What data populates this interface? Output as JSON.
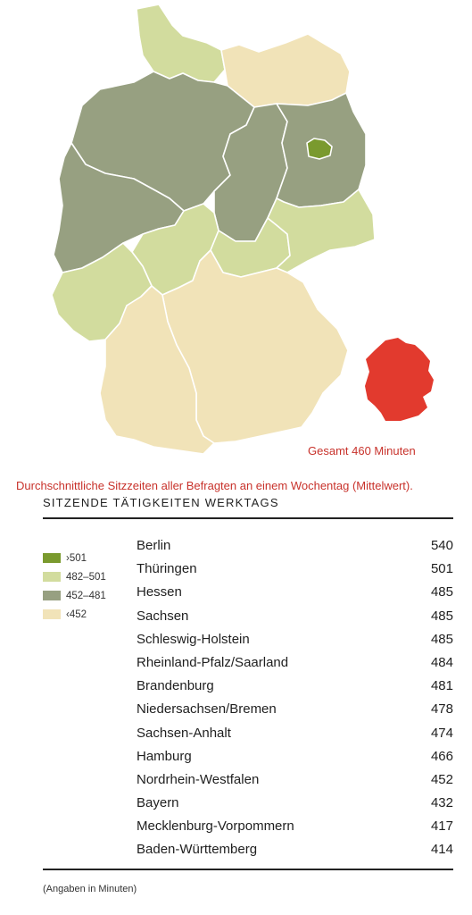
{
  "chart_data": {
    "type": "choropleth-map-with-table",
    "unit": "Minuten",
    "total": {
      "label": "Gesamt 460 Minuten",
      "value": 460
    },
    "caption": "Durchschnittliche Sitzzeiten aller Befragten an einem Wochentag (Mittelwert).",
    "heading": "SITZENDE TÄTIGKEITEN WERKTAGS",
    "legend": [
      {
        "label": "›501",
        "color": "#7a9a2e"
      },
      {
        "label": "482–501",
        "color": "#d2dc9e"
      },
      {
        "label": "452–481",
        "color": "#97a081"
      },
      {
        "label": "‹452",
        "color": "#f1e3b8"
      }
    ],
    "rows": [
      {
        "name": "Berlin",
        "value": 540
      },
      {
        "name": "Thüringen",
        "value": 501
      },
      {
        "name": "Hessen",
        "value": 485
      },
      {
        "name": "Sachsen",
        "value": 485
      },
      {
        "name": "Schleswig-Holstein",
        "value": 485
      },
      {
        "name": "Rheinland-Pfalz/Saarland",
        "value": 484
      },
      {
        "name": "Brandenburg",
        "value": 481
      },
      {
        "name": "Niedersachsen/Bremen",
        "value": 478
      },
      {
        "name": "Sachsen-Anhalt",
        "value": 474
      },
      {
        "name": "Hamburg",
        "value": 466
      },
      {
        "name": "Nordrhein-Westfalen",
        "value": 452
      },
      {
        "name": "Bayern",
        "value": 432
      },
      {
        "name": "Mecklenburg-Vorpommern",
        "value": 417
      },
      {
        "name": "Baden-Württemberg",
        "value": 414
      }
    ],
    "footnote": "(Angaben in Minuten)"
  },
  "total_color": "#e23a2e"
}
